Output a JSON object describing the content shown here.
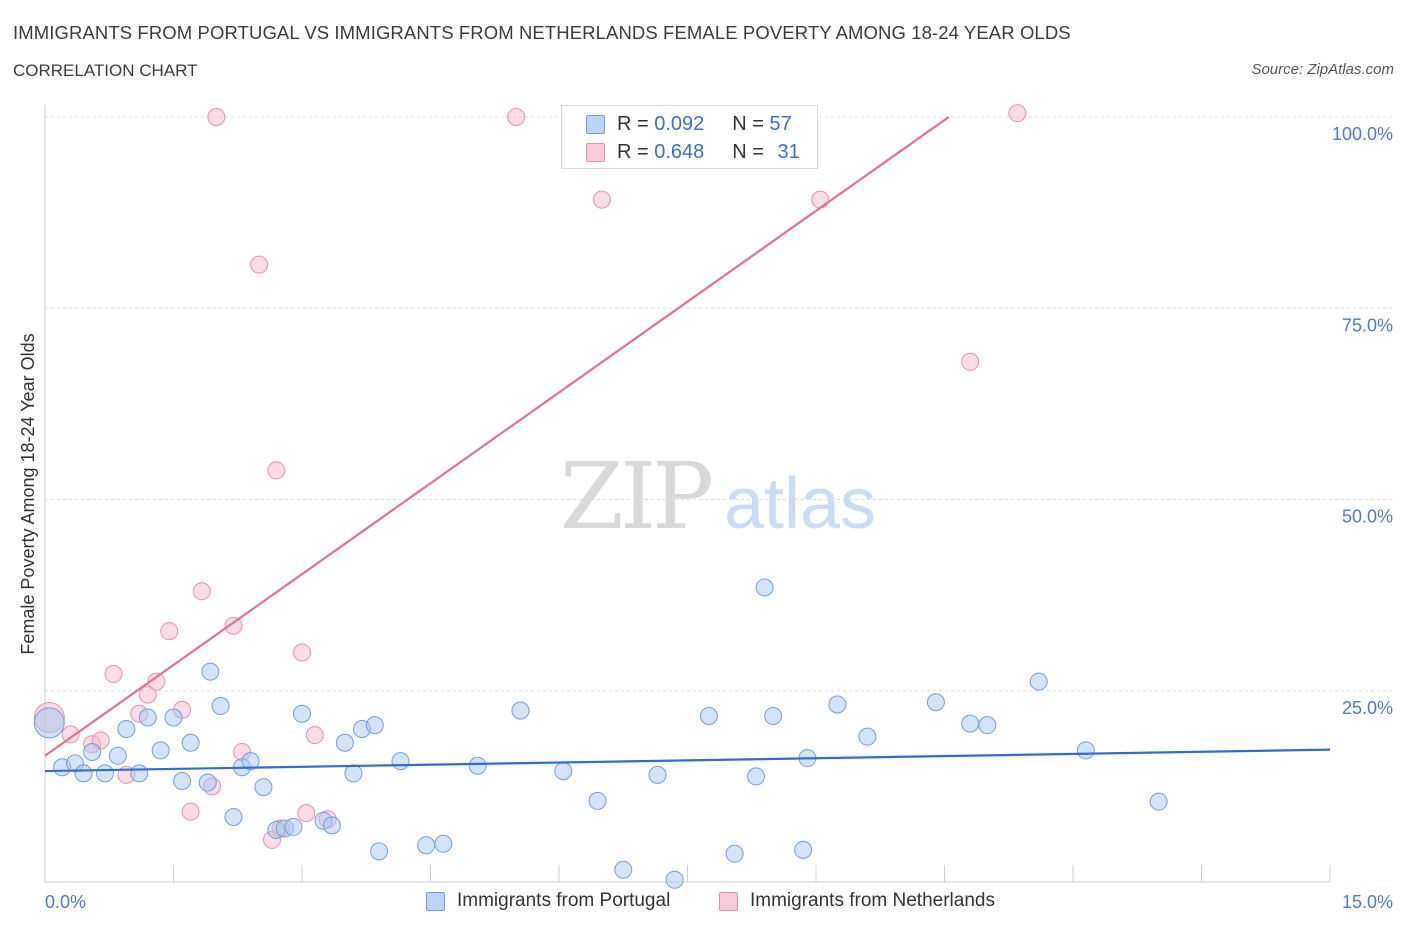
{
  "header": {
    "title": "IMMIGRANTS FROM PORTUGAL VS IMMIGRANTS FROM NETHERLANDS FEMALE POVERTY AMONG 18-24 YEAR OLDS",
    "subtitle": "CORRELATION CHART",
    "source": "Source: ZipAtlas.com"
  },
  "legend": {
    "r_label": "R = ",
    "n_label": "N = ",
    "portugal": {
      "r": "0.092",
      "n": "57",
      "color": "#a9c8f2"
    },
    "netherlands": {
      "r": "0.648",
      "n": "31",
      "color": "#f7b8cc"
    }
  },
  "watermark": {
    "zip": "ZIP",
    "atlas": "atlas"
  },
  "chart_data": {
    "type": "scatter",
    "title": "IMMIGRANTS FROM PORTUGAL VS IMMIGRANTS FROM NETHERLANDS FEMALE POVERTY AMONG 18-24 YEAR OLDS",
    "xlabel": "",
    "ylabel": "Female Poverty Among 18-24 Year Olds",
    "xlim": [
      0,
      15
    ],
    "ylim": [
      0,
      100
    ],
    "x_tick_labels": [
      "0.0%",
      "15.0%"
    ],
    "y_ticks": [
      25,
      50,
      75,
      100
    ],
    "y_tick_labels": [
      "25.0%",
      "50.0%",
      "75.0%",
      "100.0%"
    ],
    "grid": true,
    "legend_position": "top-center",
    "series": [
      {
        "name": "Immigrants from Portugal",
        "color": "#a9c8f2",
        "stroke": "#6f9fe0",
        "line_color": "#2d6fd0",
        "trend": [
          [
            0,
            14.5
          ],
          [
            15,
            17.3
          ]
        ],
        "points": [
          [
            0.05,
            20.8
          ],
          [
            0.2,
            15.0
          ],
          [
            0.35,
            15.5
          ],
          [
            0.45,
            14.2
          ],
          [
            0.55,
            17.0
          ],
          [
            0.7,
            14.2
          ],
          [
            0.85,
            16.5
          ],
          [
            0.95,
            20.0
          ],
          [
            1.1,
            14.2
          ],
          [
            1.2,
            21.5
          ],
          [
            1.35,
            17.2
          ],
          [
            1.5,
            21.5
          ],
          [
            1.6,
            13.2
          ],
          [
            1.7,
            18.2
          ],
          [
            1.9,
            13.0
          ],
          [
            1.93,
            27.5
          ],
          [
            2.05,
            23.0
          ],
          [
            2.2,
            8.5
          ],
          [
            2.3,
            15.0
          ],
          [
            2.4,
            15.8
          ],
          [
            2.55,
            12.4
          ],
          [
            2.7,
            6.8
          ],
          [
            2.8,
            7.0
          ],
          [
            2.9,
            7.2
          ],
          [
            3.0,
            22.0
          ],
          [
            3.25,
            8.0
          ],
          [
            3.35,
            7.4
          ],
          [
            3.5,
            18.2
          ],
          [
            3.6,
            14.2
          ],
          [
            3.7,
            20.0
          ],
          [
            3.85,
            20.5
          ],
          [
            3.9,
            4.0
          ],
          [
            4.15,
            15.8
          ],
          [
            4.45,
            4.8
          ],
          [
            4.65,
            5.0
          ],
          [
            5.05,
            15.2
          ],
          [
            5.55,
            22.4
          ],
          [
            6.05,
            14.5
          ],
          [
            6.45,
            10.6
          ],
          [
            6.75,
            1.6
          ],
          [
            7.15,
            14.0
          ],
          [
            7.35,
            0.3
          ],
          [
            7.75,
            21.7
          ],
          [
            8.05,
            3.7
          ],
          [
            8.3,
            13.8
          ],
          [
            8.4,
            38.5
          ],
          [
            8.5,
            21.7
          ],
          [
            8.85,
            4.2
          ],
          [
            8.9,
            16.2
          ],
          [
            9.25,
            23.2
          ],
          [
            9.6,
            19.0
          ],
          [
            10.4,
            23.5
          ],
          [
            10.8,
            20.7
          ],
          [
            11.0,
            20.5
          ],
          [
            11.6,
            26.2
          ],
          [
            12.15,
            17.2
          ],
          [
            13.0,
            10.5
          ]
        ]
      },
      {
        "name": "Immigrants from Netherlands",
        "color": "#f7b8cc",
        "stroke": "#e891ae",
        "line_color": "#e07098",
        "trend": [
          [
            0,
            16.5
          ],
          [
            10.55,
            100
          ]
        ],
        "points": [
          [
            0.05,
            21.5
          ],
          [
            0.3,
            19.3
          ],
          [
            0.55,
            18.0
          ],
          [
            0.65,
            18.5
          ],
          [
            0.8,
            27.2
          ],
          [
            0.95,
            14.0
          ],
          [
            1.1,
            22.0
          ],
          [
            1.2,
            24.5
          ],
          [
            1.3,
            26.2
          ],
          [
            1.45,
            32.8
          ],
          [
            1.6,
            22.5
          ],
          [
            1.7,
            9.2
          ],
          [
            1.83,
            38.0
          ],
          [
            1.95,
            12.5
          ],
          [
            2.0,
            100.0
          ],
          [
            2.2,
            33.5
          ],
          [
            2.3,
            17.0
          ],
          [
            2.5,
            80.7
          ],
          [
            2.65,
            5.5
          ],
          [
            2.7,
            53.8
          ],
          [
            2.75,
            7.0
          ],
          [
            3.0,
            30.0
          ],
          [
            3.05,
            9.0
          ],
          [
            3.15,
            19.2
          ],
          [
            3.3,
            8.2
          ],
          [
            5.5,
            100.0
          ],
          [
            6.5,
            89.2
          ],
          [
            7.25,
            100.0
          ],
          [
            9.05,
            89.2
          ],
          [
            10.8,
            68.0
          ],
          [
            11.35,
            100.5
          ]
        ]
      }
    ]
  },
  "bottom_legend": {
    "portugal_label": "Immigrants from Portugal",
    "netherlands_label": "Immigrants from Netherlands"
  }
}
